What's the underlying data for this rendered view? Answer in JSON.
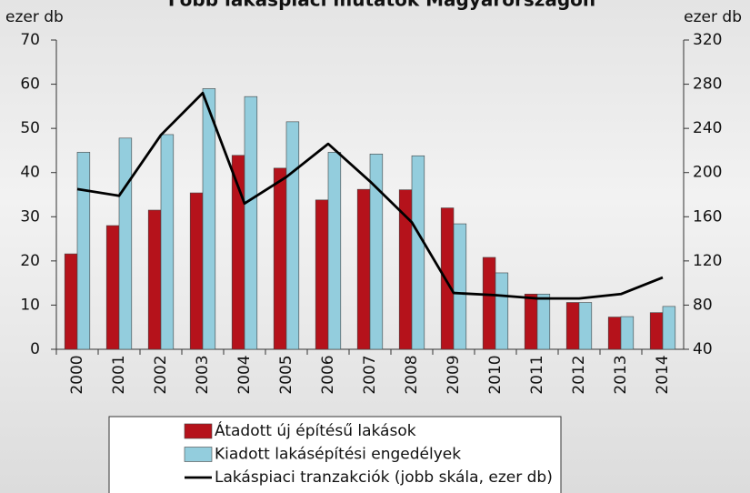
{
  "chart_data": {
    "type": "bar-line",
    "title": "Főbb lakáspiaci mutatók Magyarországon",
    "ylabel": "ezer db",
    "y2label": "ezer db",
    "categories": [
      "2000",
      "2001",
      "2002",
      "2003",
      "2004",
      "2005",
      "2006",
      "2007",
      "2008",
      "2009",
      "2010",
      "2011",
      "2012",
      "2013",
      "2014"
    ],
    "series": [
      {
        "name": "Átadott új építésű lakások",
        "type": "bar",
        "color": "#b5121b",
        "values": [
          21.6,
          28,
          31.5,
          35.4,
          43.9,
          41,
          33.8,
          36.2,
          36.1,
          32,
          20.8,
          12.5,
          10.6,
          7.3,
          8.3
        ]
      },
      {
        "name": "Kiadott lakásépítési engedélyek",
        "type": "bar",
        "color": "#93cddd",
        "values": [
          44.6,
          47.8,
          48.6,
          59,
          57.2,
          51.5,
          44.6,
          44.2,
          43.8,
          28.4,
          17.3,
          12.5,
          10.6,
          7.4,
          9.7
        ]
      },
      {
        "name": "Lakáspiaci tranzakciók (jobb skála, ezer db)",
        "type": "line",
        "color": "#000000",
        "axis": "y2",
        "values": [
          185,
          179,
          234,
          272,
          172,
          196,
          226,
          192,
          155,
          91,
          89,
          86,
          86,
          90,
          105
        ]
      }
    ],
    "ylim": [
      0,
      70
    ],
    "yticks": [
      0,
      10,
      20,
      30,
      40,
      50,
      60,
      70
    ],
    "y2lim": [
      40,
      320
    ],
    "y2ticks": [
      40,
      80,
      120,
      160,
      200,
      240,
      280,
      320
    ],
    "grid": false
  }
}
